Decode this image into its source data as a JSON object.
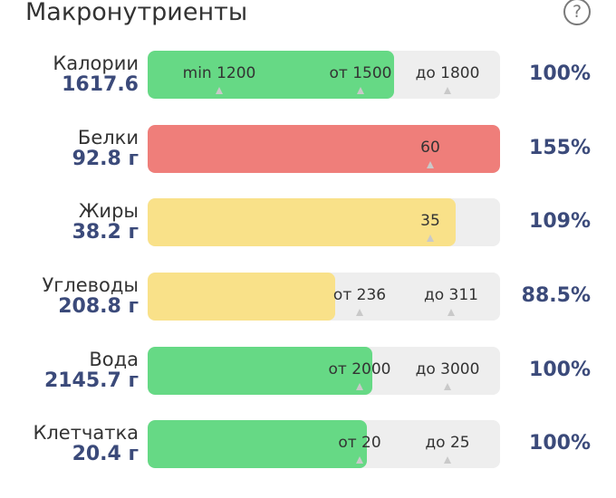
{
  "header": {
    "title": "Макронутриенты",
    "help_symbol": "?"
  },
  "colors": {
    "green": "#66d985",
    "red": "#ef7e7a",
    "yellow": "#f9e189",
    "track": "#eeeeee",
    "accent": "#3b4a7a"
  },
  "rows": [
    {
      "label": "Калории",
      "value": "1617.6",
      "percent": "100%",
      "fill_color": "green",
      "markers": [
        {
          "text": "min 1200",
          "tick": true
        },
        {
          "text": "от 1500",
          "tick": true
        },
        {
          "text": "до 1800",
          "tick": true
        }
      ]
    },
    {
      "label": "Белки",
      "value": "92.8 г",
      "percent": "155%",
      "fill_color": "red",
      "markers": [
        {
          "text": "60",
          "tick": true
        }
      ]
    },
    {
      "label": "Жиры",
      "value": "38.2 г",
      "percent": "109%",
      "fill_color": "yellow",
      "markers": [
        {
          "text": "35",
          "tick": true
        }
      ]
    },
    {
      "label": "Углеводы",
      "value": "208.8 г",
      "percent": "88.5%",
      "fill_color": "yellow",
      "markers": [
        {
          "text": "от 236",
          "tick": true
        },
        {
          "text": "до 311",
          "tick": true
        }
      ]
    },
    {
      "label": "Вода",
      "value": "2145.7 г",
      "percent": "100%",
      "fill_color": "green",
      "markers": [
        {
          "text": "от 2000",
          "tick": true
        },
        {
          "text": "до 3000",
          "tick": true
        }
      ]
    },
    {
      "label": "Клетчатка",
      "value": "20.4 г",
      "percent": "100%",
      "fill_color": "green",
      "markers": [
        {
          "text": "от 20",
          "tick": true
        },
        {
          "text": "до 25",
          "tick": true
        }
      ]
    }
  ]
}
